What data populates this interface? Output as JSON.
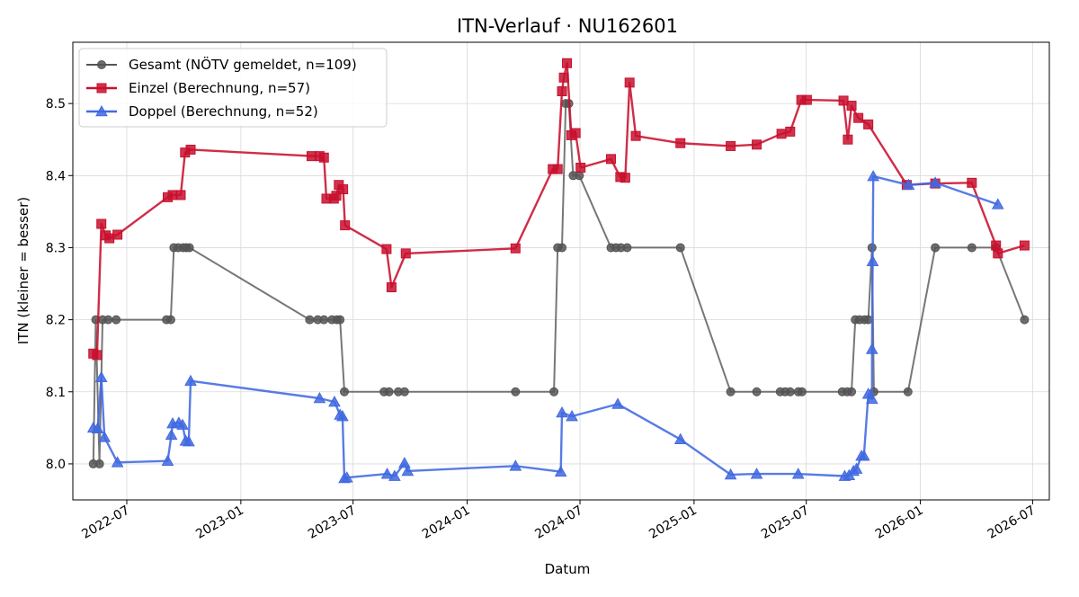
{
  "chart_data": {
    "type": "line",
    "title": "ITN-Verlauf · NU162601",
    "xlabel": "Datum",
    "ylabel": "ITN  (kleiner = besser)",
    "xlim": [
      "2022-04-05",
      "2026-07-28"
    ],
    "ylim": [
      7.95,
      8.585
    ],
    "x_ticks": [
      "2022-07-01",
      "2023-01-01",
      "2023-07-01",
      "2024-01-01",
      "2024-07-01",
      "2025-01-01",
      "2025-07-01",
      "2026-01-01",
      "2026-07-01"
    ],
    "x_tick_labels": [
      "2022-07",
      "2023-01",
      "2023-07",
      "2024-01",
      "2024-07",
      "2025-01",
      "2025-07",
      "2026-01",
      "2026-07"
    ],
    "y_ticks": [
      8.0,
      8.1,
      8.2,
      8.3,
      8.4,
      8.5
    ],
    "y_tick_labels": [
      "8.0",
      "8.1",
      "8.2",
      "8.3",
      "8.4",
      "8.5"
    ],
    "grid": true,
    "legend_position": "top-left",
    "series": [
      {
        "name": "Gesamt (NÖTV gemeldet, n=109)",
        "color": "#555555",
        "marker": "circle",
        "points": [
          [
            "2022-05-08",
            8.0
          ],
          [
            "2022-05-12",
            8.2
          ],
          [
            "2022-05-18",
            8.0
          ],
          [
            "2022-05-23",
            8.2
          ],
          [
            "2022-06-01",
            8.2
          ],
          [
            "2022-06-14",
            8.2
          ],
          [
            "2022-09-03",
            8.2
          ],
          [
            "2022-09-10",
            8.2
          ],
          [
            "2022-09-15",
            8.3
          ],
          [
            "2022-09-22",
            8.3
          ],
          [
            "2022-09-30",
            8.3
          ],
          [
            "2022-10-05",
            8.3
          ],
          [
            "2022-10-10",
            8.3
          ],
          [
            "2023-04-22",
            8.2
          ],
          [
            "2023-05-05",
            8.2
          ],
          [
            "2023-05-15",
            8.2
          ],
          [
            "2023-05-28",
            8.2
          ],
          [
            "2023-06-05",
            8.2
          ],
          [
            "2023-06-10",
            8.2
          ],
          [
            "2023-06-17",
            8.1
          ],
          [
            "2023-08-20",
            8.1
          ],
          [
            "2023-08-28",
            8.1
          ],
          [
            "2023-09-12",
            8.1
          ],
          [
            "2023-09-22",
            8.1
          ],
          [
            "2024-03-19",
            8.1
          ],
          [
            "2024-05-20",
            8.1
          ],
          [
            "2024-05-26",
            8.3
          ],
          [
            "2024-06-02",
            8.3
          ],
          [
            "2024-06-08",
            8.5
          ],
          [
            "2024-06-13",
            8.5
          ],
          [
            "2024-06-20",
            8.4
          ],
          [
            "2024-06-30",
            8.4
          ],
          [
            "2024-08-20",
            8.3
          ],
          [
            "2024-08-28",
            8.3
          ],
          [
            "2024-09-05",
            8.3
          ],
          [
            "2024-09-15",
            8.3
          ],
          [
            "2024-12-10",
            8.3
          ],
          [
            "2025-03-01",
            8.1
          ],
          [
            "2025-04-12",
            8.1
          ],
          [
            "2025-05-20",
            8.1
          ],
          [
            "2025-05-28",
            8.1
          ],
          [
            "2025-06-05",
            8.1
          ],
          [
            "2025-06-18",
            8.1
          ],
          [
            "2025-06-24",
            8.1
          ],
          [
            "2025-08-28",
            8.1
          ],
          [
            "2025-09-05",
            8.1
          ],
          [
            "2025-09-12",
            8.1
          ],
          [
            "2025-09-18",
            8.2
          ],
          [
            "2025-09-25",
            8.2
          ],
          [
            "2025-10-03",
            8.2
          ],
          [
            "2025-10-09",
            8.2
          ],
          [
            "2025-10-15",
            8.3
          ],
          [
            "2025-10-18",
            8.1
          ],
          [
            "2025-12-12",
            8.1
          ],
          [
            "2026-01-25",
            8.3
          ],
          [
            "2026-03-25",
            8.3
          ],
          [
            "2026-05-03",
            8.3
          ],
          [
            "2026-06-18",
            8.2
          ]
        ]
      },
      {
        "name": "Einzel (Berechnung, n=57)",
        "color": "#c8102e",
        "marker": "square",
        "points": [
          [
            "2022-05-08",
            8.153
          ],
          [
            "2022-05-14",
            8.151
          ],
          [
            "2022-05-21",
            8.333
          ],
          [
            "2022-05-28",
            8.317
          ],
          [
            "2022-06-03",
            8.313
          ],
          [
            "2022-06-16",
            8.318
          ],
          [
            "2022-09-05",
            8.37
          ],
          [
            "2022-09-13",
            8.373
          ],
          [
            "2022-09-26",
            8.373
          ],
          [
            "2022-10-03",
            8.432
          ],
          [
            "2022-10-12",
            8.436
          ],
          [
            "2023-04-25",
            8.427
          ],
          [
            "2023-05-08",
            8.427
          ],
          [
            "2023-05-15",
            8.425
          ],
          [
            "2023-05-19",
            8.368
          ],
          [
            "2023-05-31",
            8.368
          ],
          [
            "2023-06-04",
            8.372
          ],
          [
            "2023-06-08",
            8.387
          ],
          [
            "2023-06-15",
            8.381
          ],
          [
            "2023-06-18",
            8.331
          ],
          [
            "2023-08-24",
            8.298
          ],
          [
            "2023-09-01",
            8.245
          ],
          [
            "2023-09-24",
            8.292
          ],
          [
            "2024-03-19",
            8.299
          ],
          [
            "2024-05-18",
            8.409
          ],
          [
            "2024-05-26",
            8.409
          ],
          [
            "2024-06-02",
            8.517
          ],
          [
            "2024-06-05",
            8.536
          ],
          [
            "2024-06-10",
            8.556
          ],
          [
            "2024-06-17",
            8.456
          ],
          [
            "2024-06-24",
            8.459
          ],
          [
            "2024-07-02",
            8.411
          ],
          [
            "2024-08-20",
            8.423
          ],
          [
            "2024-09-04",
            8.398
          ],
          [
            "2024-09-12",
            8.397
          ],
          [
            "2024-09-19",
            8.529
          ],
          [
            "2024-09-29",
            8.455
          ],
          [
            "2024-12-10",
            8.445
          ],
          [
            "2025-03-01",
            8.441
          ],
          [
            "2025-04-12",
            8.443
          ],
          [
            "2025-05-22",
            8.458
          ],
          [
            "2025-06-05",
            8.461
          ],
          [
            "2025-06-23",
            8.505
          ],
          [
            "2025-07-02",
            8.505
          ],
          [
            "2025-08-30",
            8.504
          ],
          [
            "2025-09-06",
            8.45
          ],
          [
            "2025-09-12",
            8.497
          ],
          [
            "2025-09-23",
            8.48
          ],
          [
            "2025-10-09",
            8.471
          ],
          [
            "2025-12-10",
            8.387
          ],
          [
            "2026-01-25",
            8.389
          ],
          [
            "2026-03-25",
            8.39
          ],
          [
            "2026-05-03",
            8.303
          ],
          [
            "2026-05-06",
            8.292
          ],
          [
            "2026-06-18",
            8.303
          ]
        ]
      },
      {
        "name": "Doppel (Berechnung, n=52)",
        "color": "#4169e1",
        "marker": "triangle",
        "points": [
          [
            "2022-05-08",
            8.05
          ],
          [
            "2022-05-15",
            8.049
          ],
          [
            "2022-05-21",
            8.12
          ],
          [
            "2022-05-26",
            8.037
          ],
          [
            "2022-06-16",
            8.002
          ],
          [
            "2022-09-05",
            8.004
          ],
          [
            "2022-09-11",
            8.04
          ],
          [
            "2022-09-13",
            8.056
          ],
          [
            "2022-09-23",
            8.057
          ],
          [
            "2022-09-29",
            8.054
          ],
          [
            "2022-10-04",
            8.032
          ],
          [
            "2022-10-09",
            8.031
          ],
          [
            "2022-10-12",
            8.115
          ],
          [
            "2023-05-08",
            8.091
          ],
          [
            "2023-06-01",
            8.086
          ],
          [
            "2023-06-10",
            8.068
          ],
          [
            "2023-06-14",
            8.066
          ],
          [
            "2023-06-17",
            7.98
          ],
          [
            "2023-06-21",
            7.981
          ],
          [
            "2023-08-25",
            7.986
          ],
          [
            "2023-09-06",
            7.983
          ],
          [
            "2023-09-22",
            8.001
          ],
          [
            "2023-09-27",
            7.99
          ],
          [
            "2024-03-19",
            7.997
          ],
          [
            "2024-05-31",
            7.989
          ],
          [
            "2024-06-02",
            8.071
          ],
          [
            "2024-06-18",
            8.066
          ],
          [
            "2024-08-31",
            8.083
          ],
          [
            "2024-12-10",
            8.034
          ],
          [
            "2025-03-01",
            7.985
          ],
          [
            "2025-04-12",
            7.986
          ],
          [
            "2025-06-18",
            7.986
          ],
          [
            "2025-09-01",
            7.983
          ],
          [
            "2025-09-08",
            7.984
          ],
          [
            "2025-09-15",
            7.99
          ],
          [
            "2025-09-20",
            7.993
          ],
          [
            "2025-09-28",
            8.011
          ],
          [
            "2025-10-02",
            8.011
          ],
          [
            "2025-10-09",
            8.097
          ],
          [
            "2025-10-15",
            8.09
          ],
          [
            "2025-10-15",
            8.159
          ],
          [
            "2025-10-16",
            8.281
          ],
          [
            "2025-10-17",
            8.399
          ],
          [
            "2025-12-13",
            8.387
          ],
          [
            "2026-01-25",
            8.39
          ],
          [
            "2026-05-06",
            8.36
          ]
        ]
      }
    ]
  }
}
